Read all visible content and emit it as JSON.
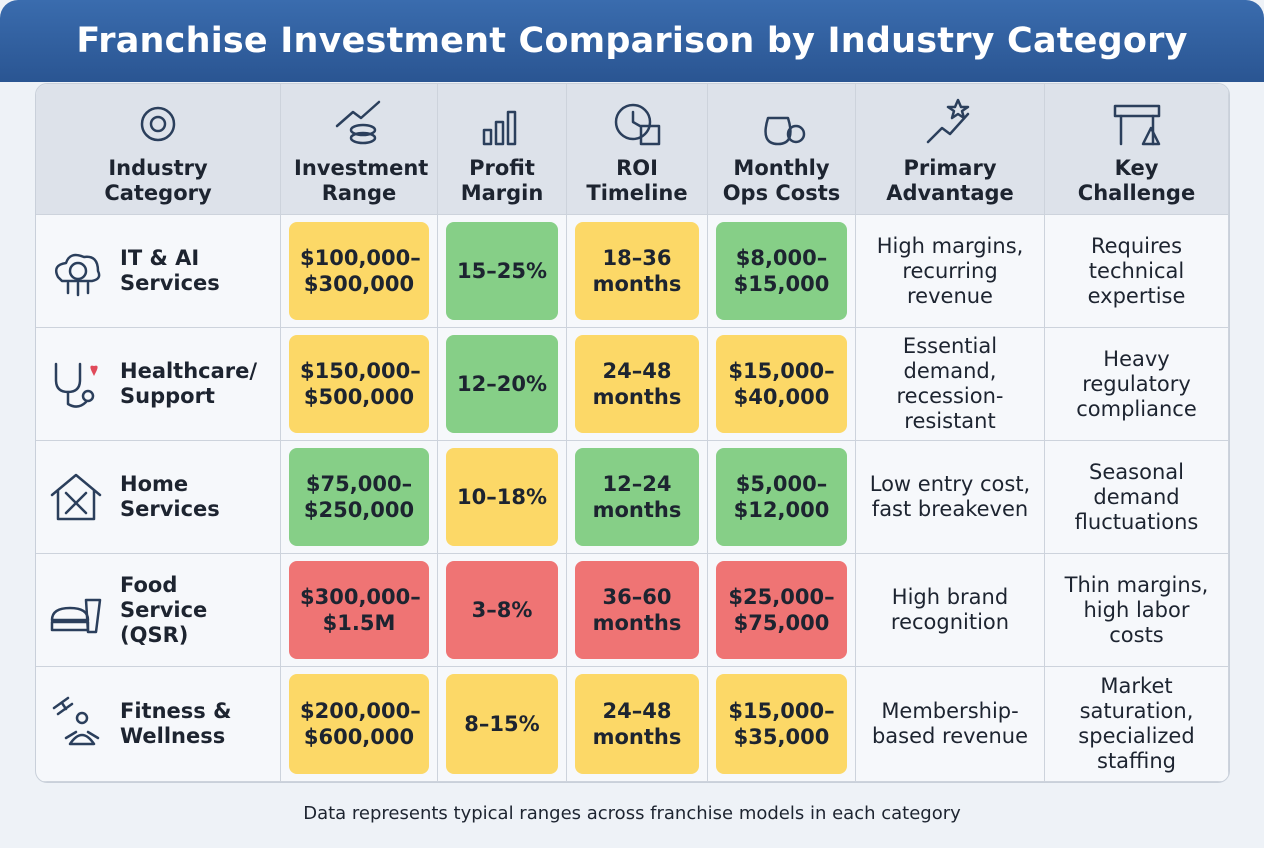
{
  "title": "Franchise Investment Comparison by Industry Category",
  "table": {
    "headers": [
      "Industry Category",
      "Investment Range",
      "Profit Margin",
      "ROI Timeline",
      "Monthly Ops Costs",
      "Primary Advantage",
      "Key Challenge"
    ],
    "rows": [
      [
        "IT & AI Services",
        {
          "text": "$100,000–$300,000",
          "color": "#fcd867"
        },
        {
          "text": "15–25%",
          "color": "#86cf87"
        },
        {
          "text": "18–36 months",
          "color": "#fcd867"
        },
        {
          "text": "$8,000–$15,000",
          "color": "#86cf87"
        },
        "High margins, recurring revenue",
        "Requires technical expertise"
      ],
      [
        "Healthcare/ Support",
        {
          "text": "$150,000–$500,000",
          "color": "#fcd867"
        },
        {
          "text": "12–20%",
          "color": "#86cf87"
        },
        {
          "text": "24–48 months",
          "color": "#fcd867"
        },
        {
          "text": "$15,000–$40,000",
          "color": "#fcd867"
        },
        "Essential demand, recession-resistant",
        "Heavy regulatory compliance"
      ],
      [
        "Home Services",
        {
          "text": "$75,000–$250,000",
          "color": "#86cf87"
        },
        {
          "text": "10–18%",
          "color": "#fcd867"
        },
        {
          "text": "12–24 months",
          "color": "#86cf87"
        },
        {
          "text": "$5,000–$12,000",
          "color": "#86cf87"
        },
        "Low entry cost, fast breakeven",
        "Seasonal demand fluctuations"
      ],
      [
        "Food Service (QSR)",
        {
          "text": "$300,000–$1.5M",
          "color": "#ef7474"
        },
        {
          "text": "3–8%",
          "color": "#ef7474"
        },
        {
          "text": "36–60 months",
          "color": "#ef7474"
        },
        {
          "text": "$25,000–$75,000",
          "color": "#ef7474"
        },
        "High brand recognition",
        "Thin margins, high labor costs"
      ],
      [
        "Fitness & Wellness",
        {
          "text": "$200,000–$600,000",
          "color": "#fcd867"
        },
        {
          "text": "8–15%",
          "color": "#fcd867"
        },
        {
          "text": "24–48 months",
          "color": "#fcd867"
        },
        {
          "text": "$15,000–$35,000",
          "color": "#fcd867"
        },
        "Membership-based revenue",
        "Market saturation, specialized staffing"
      ]
    ]
  },
  "footnote": "Data represents typical ranges across franchise models in each category"
}
